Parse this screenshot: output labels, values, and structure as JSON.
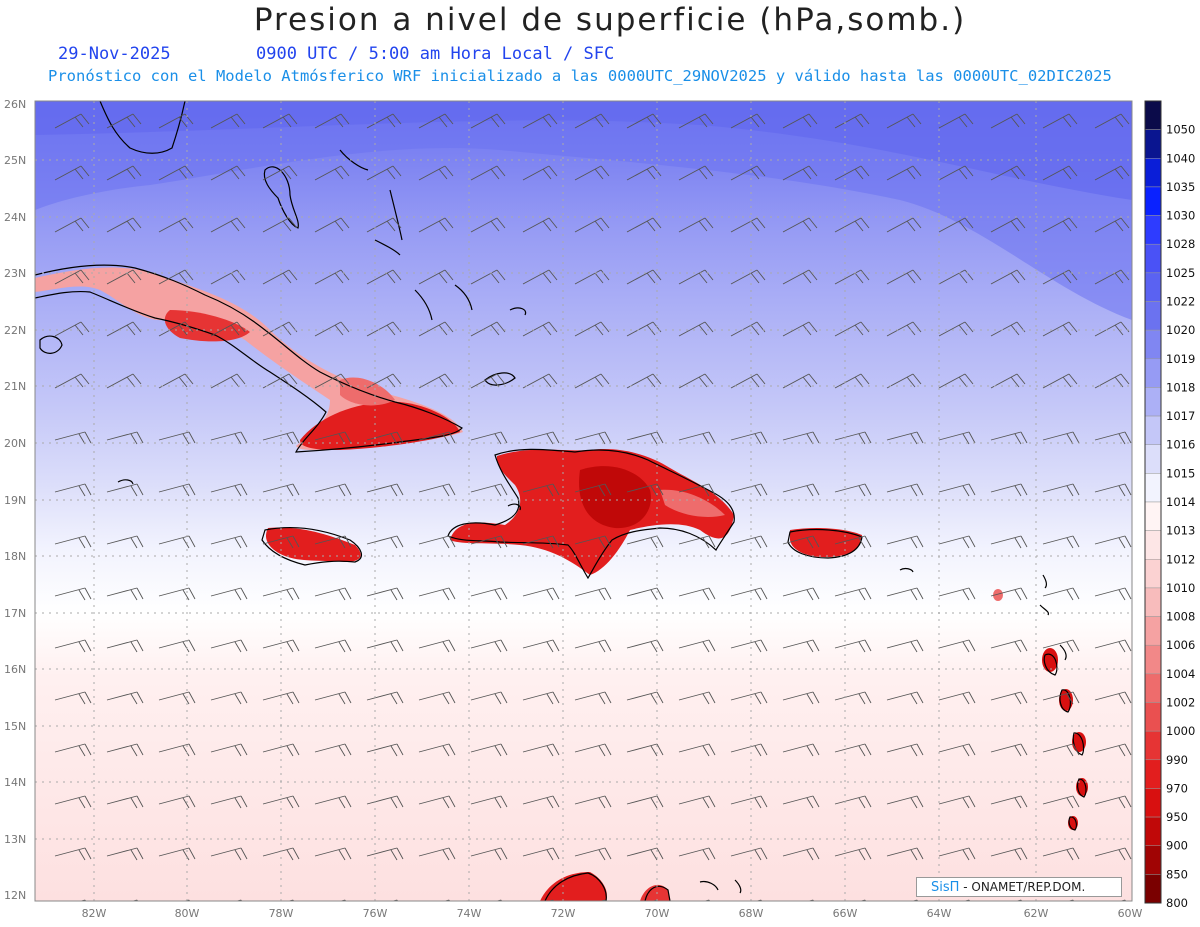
{
  "header": {
    "title": "Presion a nivel de superficie (hPa,somb.)",
    "date": "29-Nov-2025",
    "time": "0900 UTC / 5:00 am Hora Local / SFC",
    "subtitle": "Pronóstico con el Modelo Atmósferico WRF inicializado a las 0000UTC_29NOV2025 y válido hasta las  0000UTC_02DIC2025"
  },
  "map": {
    "lat_labels": [
      "26N",
      "25N",
      "24N",
      "23N",
      "22N",
      "21N",
      "20N",
      "19N",
      "18N",
      "17N",
      "16N",
      "15N",
      "14N",
      "13N",
      "12N"
    ],
    "lon_labels": [
      "82W",
      "80W",
      "78W",
      "76W",
      "74W",
      "72W",
      "70W",
      "68W",
      "66W",
      "64W",
      "62W",
      "60W"
    ],
    "colors": {
      "coast": "#000000",
      "grid": "#aaaaaa",
      "wind_barb": "#555555",
      "high_pressure": "#6b6ef0",
      "low_pressure": "#e02020"
    }
  },
  "colorbar": {
    "levels": [
      {
        "label": "1050",
        "color": "#0b0b4a"
      },
      {
        "label": "1040",
        "color": "#0a1590"
      },
      {
        "label": "1035",
        "color": "#0a1ed8"
      },
      {
        "label": "1030",
        "color": "#0a22ff"
      },
      {
        "label": "1028",
        "color": "#2e3cff"
      },
      {
        "label": "1025",
        "color": "#4a52f6"
      },
      {
        "label": "1022",
        "color": "#5a62f2"
      },
      {
        "label": "1020",
        "color": "#6b72f0"
      },
      {
        "label": "1019",
        "color": "#8086f2"
      },
      {
        "label": "1018",
        "color": "#969bf4"
      },
      {
        "label": "1017",
        "color": "#acb0f6"
      },
      {
        "label": "1016",
        "color": "#c4c7f8"
      },
      {
        "label": "1015",
        "color": "#dcdefa"
      },
      {
        "label": "1014",
        "color": "#f2f3fe"
      },
      {
        "label": "1013",
        "color": "#fff4f4"
      },
      {
        "label": "1012",
        "color": "#fde6e6"
      },
      {
        "label": "1010",
        "color": "#fbd2d2"
      },
      {
        "label": "1008",
        "color": "#f8bcbc"
      },
      {
        "label": "1006",
        "color": "#f5a2a2"
      },
      {
        "label": "1004",
        "color": "#f28888"
      },
      {
        "label": "1002",
        "color": "#ee6c6c"
      },
      {
        "label": "1000",
        "color": "#ea5050"
      },
      {
        "label": "990",
        "color": "#e63434"
      },
      {
        "label": "970",
        "color": "#e21e1e"
      },
      {
        "label": "950",
        "color": "#d81010"
      },
      {
        "label": "900",
        "color": "#c00808"
      },
      {
        "label": "850",
        "color": "#a00404"
      },
      {
        "label": "800",
        "color": "#7a0000"
      }
    ]
  },
  "credit": {
    "brand": "SisΠ",
    "text": " - ONAMET/REP.DOM."
  }
}
